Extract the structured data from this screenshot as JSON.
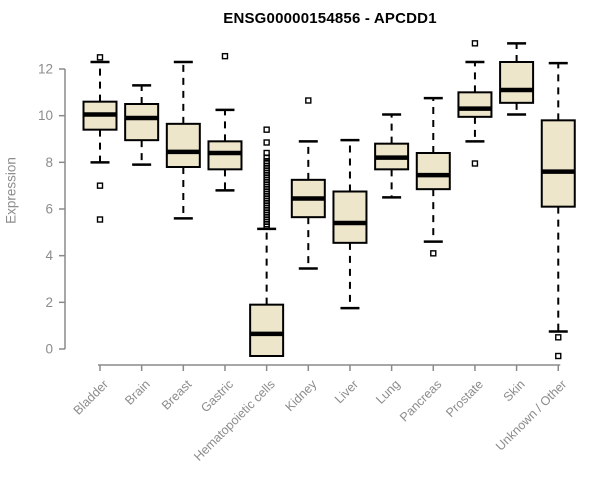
{
  "title": "ENSG00000154856 - APCDD1",
  "colors": {
    "box_fill": "#EDE6CA",
    "box_border": "#000000",
    "median": "#000000",
    "whisker": "#000000",
    "outlier": "#000000",
    "axis": "#8a8a8a",
    "tick_text": "#8c8c8c",
    "title_text": "#000000",
    "background": "#ffffff"
  },
  "chart_data": {
    "type": "boxplot",
    "title": "ENSG00000154856 - APCDD1",
    "xlabel": "",
    "ylabel": "Expression",
    "ylim": [
      0,
      12
    ],
    "y_ticks": [
      0,
      2,
      4,
      6,
      8,
      10,
      12
    ],
    "grid": false,
    "legend": false,
    "categories": [
      "Bladder",
      "Brain",
      "Breast",
      "Gastric",
      "Hematopoietic cells",
      "Kidney",
      "Liver",
      "Lung",
      "Pancreas",
      "Prostate",
      "Skin",
      "Unknown / Other"
    ],
    "series": [
      {
        "name": "Bladder",
        "whisker_low": 8.0,
        "q1": 9.4,
        "median": 10.05,
        "q3": 10.6,
        "whisker_high": 12.3,
        "outliers": [
          12.5,
          7.0,
          5.55
        ]
      },
      {
        "name": "Brain",
        "whisker_low": 7.9,
        "q1": 8.95,
        "median": 9.9,
        "q3": 10.5,
        "whisker_high": 11.3,
        "outliers": []
      },
      {
        "name": "Breast",
        "whisker_low": 5.6,
        "q1": 7.8,
        "median": 8.45,
        "q3": 9.65,
        "whisker_high": 12.3,
        "outliers": []
      },
      {
        "name": "Gastric",
        "whisker_low": 6.8,
        "q1": 7.7,
        "median": 8.4,
        "q3": 8.9,
        "whisker_high": 10.25,
        "outliers": [
          12.55
        ]
      },
      {
        "name": "Hematopoietic cells",
        "whisker_low": -0.3,
        "q1": -0.3,
        "median": 0.65,
        "q3": 1.9,
        "whisker_high": 5.15,
        "outliers": [
          9.4,
          8.85,
          8.4,
          8.2,
          8.05,
          7.95,
          7.85,
          7.75,
          7.65,
          7.55,
          7.45,
          7.35,
          7.25,
          7.15,
          7.05,
          6.95,
          6.85,
          6.75,
          6.65,
          6.55,
          6.45,
          6.35,
          6.25,
          6.15,
          6.05,
          5.95,
          5.85,
          5.75,
          5.65,
          5.55,
          5.45,
          5.35,
          5.25
        ]
      },
      {
        "name": "Kidney",
        "whisker_low": 3.45,
        "q1": 5.65,
        "median": 6.45,
        "q3": 7.25,
        "whisker_high": 8.9,
        "outliers": [
          10.65
        ]
      },
      {
        "name": "Liver",
        "whisker_low": 1.75,
        "q1": 4.55,
        "median": 5.4,
        "q3": 6.75,
        "whisker_high": 8.95,
        "outliers": []
      },
      {
        "name": "Lung",
        "whisker_low": 6.5,
        "q1": 7.7,
        "median": 8.2,
        "q3": 8.8,
        "whisker_high": 10.05,
        "outliers": []
      },
      {
        "name": "Pancreas",
        "whisker_low": 4.6,
        "q1": 6.85,
        "median": 7.45,
        "q3": 8.4,
        "whisker_high": 10.75,
        "outliers": [
          4.1
        ]
      },
      {
        "name": "Prostate",
        "whisker_low": 8.9,
        "q1": 9.95,
        "median": 10.3,
        "q3": 11.0,
        "whisker_high": 12.3,
        "outliers": [
          13.1,
          7.95
        ]
      },
      {
        "name": "Skin",
        "whisker_low": 10.05,
        "q1": 10.55,
        "median": 11.1,
        "q3": 12.3,
        "whisker_high": 13.1,
        "outliers": []
      },
      {
        "name": "Unknown / Other",
        "whisker_low": 0.75,
        "q1": 6.1,
        "median": 7.6,
        "q3": 9.8,
        "whisker_high": 12.25,
        "outliers": [
          0.5,
          -0.3
        ]
      }
    ]
  }
}
